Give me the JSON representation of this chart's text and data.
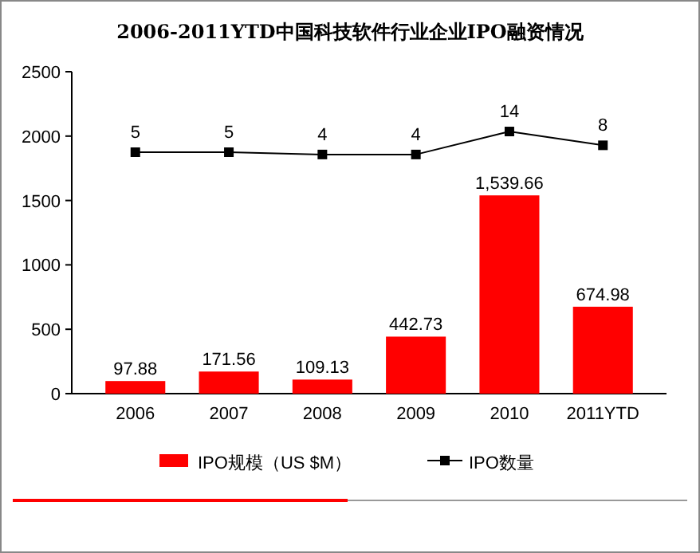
{
  "chart_data": {
    "type": "bar",
    "title": "2006-2011YTD中国科技软件行业企业IPO融资情况",
    "categories": [
      "2006",
      "2007",
      "2008",
      "2009",
      "2010",
      "2011YTD"
    ],
    "series": [
      {
        "name": "IPO规模（US $M）",
        "color": "#ff0000",
        "values": [
          97.88,
          171.56,
          109.13,
          442.73,
          1539.66,
          674.98
        ],
        "value_labels": [
          "97.88",
          "171.56",
          "109.13",
          "442.73",
          "1,539.66",
          "674.98"
        ]
      },
      {
        "name": "IPO数量",
        "type": "line",
        "axis": "y2",
        "color": "#000000",
        "values": [
          5,
          5,
          4,
          4,
          14,
          8
        ]
      }
    ],
    "ylim": [
      0,
      2500
    ],
    "yticks": [
      0,
      500,
      1000,
      1500,
      2000,
      2500
    ],
    "y2lim": [
      -100,
      40
    ],
    "data_labels": true,
    "legend": "bottom",
    "grid": false,
    "marker": "square",
    "line_style": "solid"
  }
}
